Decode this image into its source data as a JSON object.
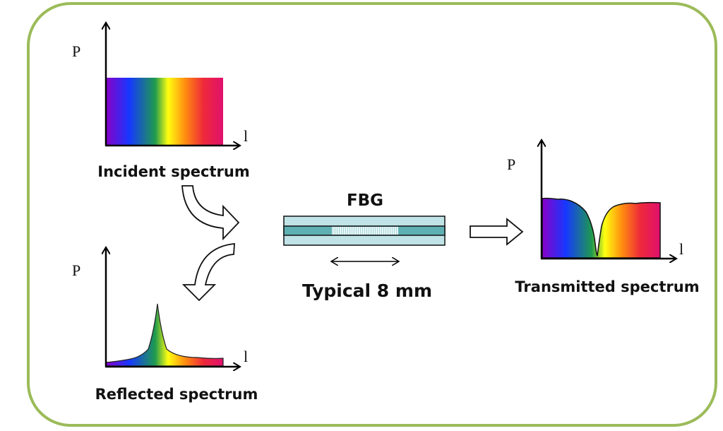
{
  "colors": {
    "frame": "#9bbb59",
    "cladding": "#bfe3e6",
    "core": "#5fb0b3"
  },
  "incident": {
    "title": "Incident spectrum",
    "y_axis": "P",
    "x_axis": "l"
  },
  "reflected": {
    "title": "Reflected spectrum",
    "y_axis": "P",
    "x_axis": "l"
  },
  "transmitted": {
    "title": "Transmitted spectrum",
    "y_axis": "P",
    "x_axis": "l"
  },
  "fbg": {
    "title": "FBG",
    "length_label": "Typical 8 mm"
  }
}
